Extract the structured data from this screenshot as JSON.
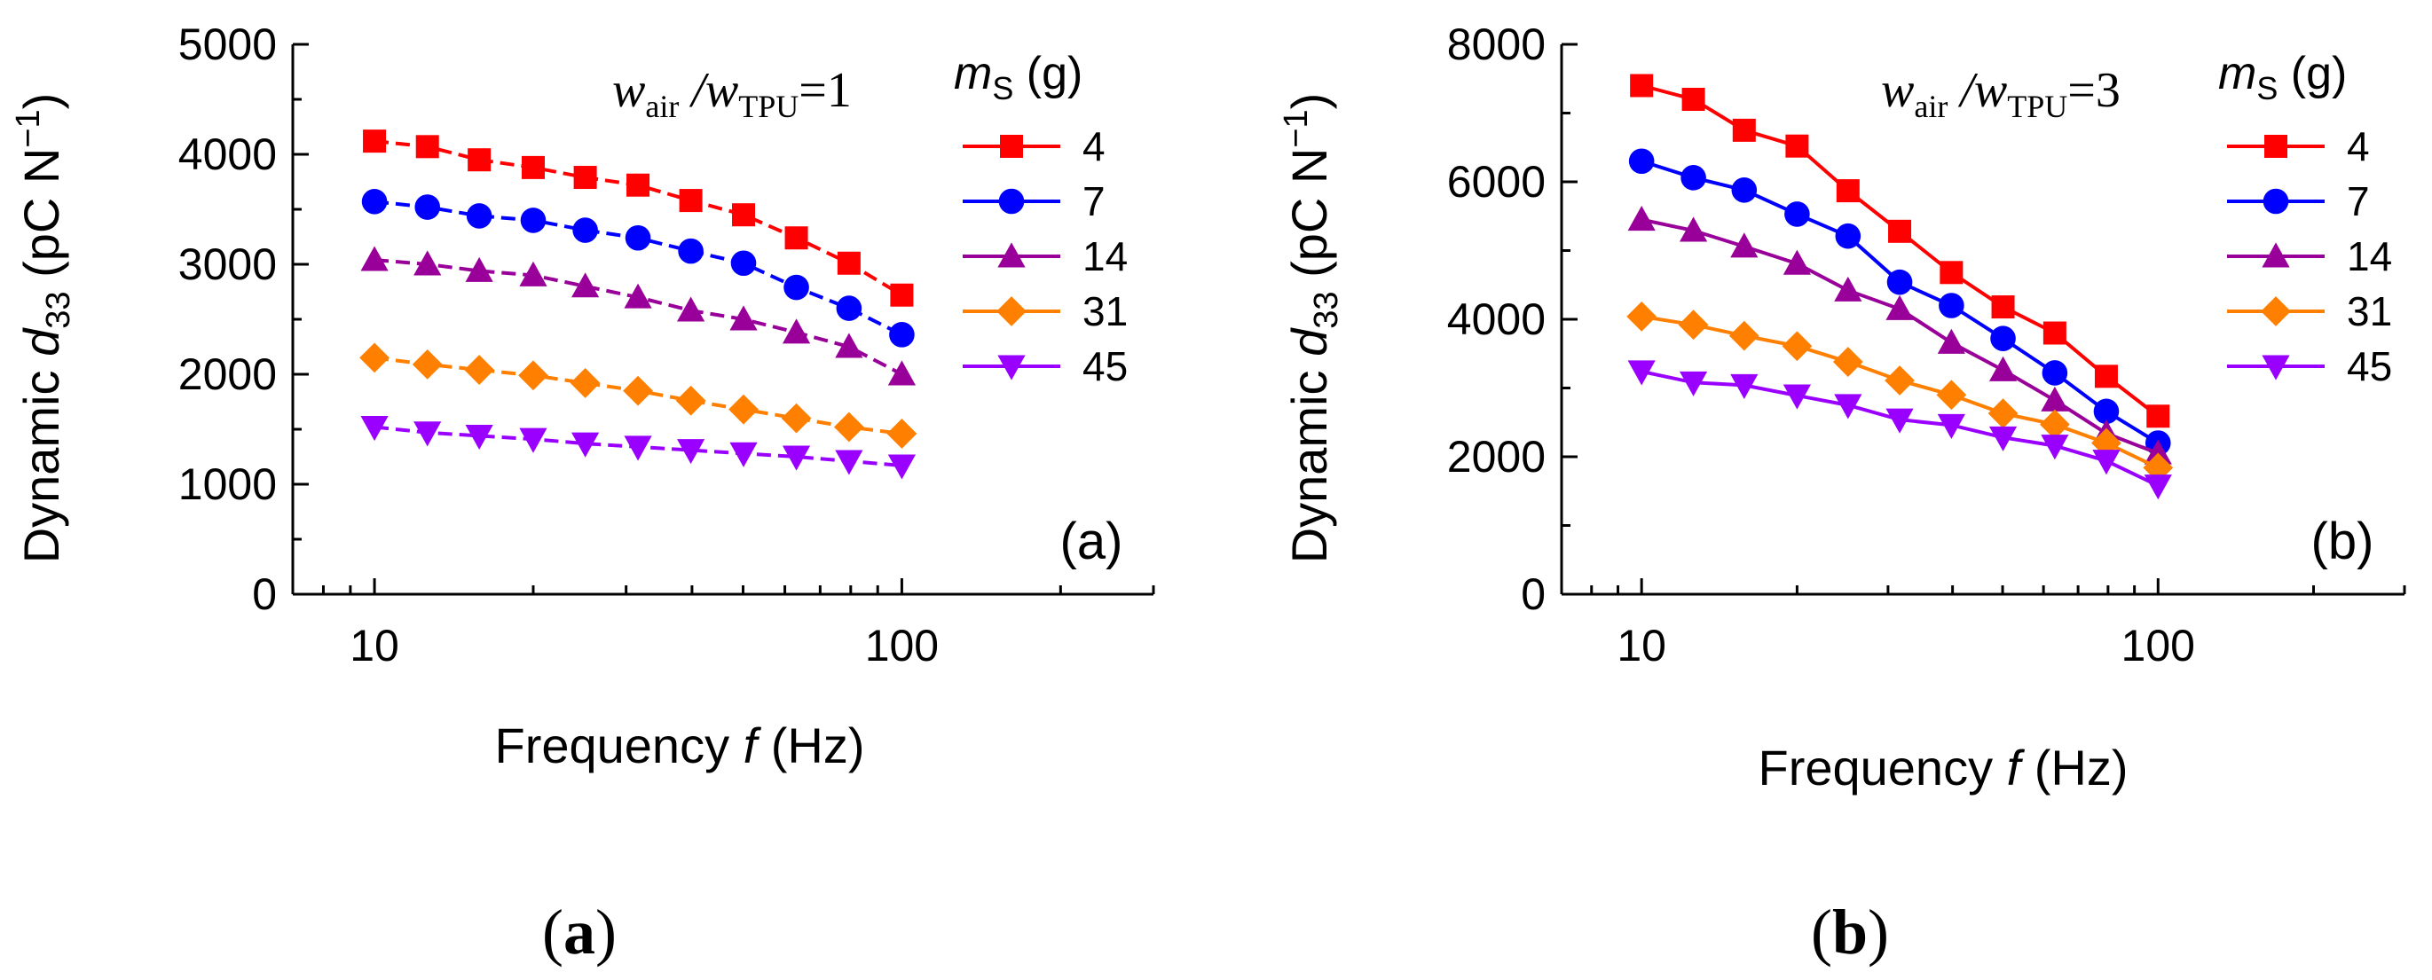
{
  "figure_captions": [
    {
      "open": "(",
      "letter": "a",
      "close": ")"
    },
    {
      "open": "(",
      "letter": "b",
      "close": ")"
    }
  ],
  "chart_data": [
    {
      "type": "line",
      "panel_label": "(a)",
      "annotation": {
        "w1": "w",
        "sub1": "air",
        "slash": " /",
        "w2": "w",
        "sub2": "TPU",
        "tail": "=1"
      },
      "xlabel": "Frequency  f  (Hz)",
      "ylabel": "Dynamic d33 (pC N⁻¹)",
      "ylabel_parts": {
        "prefix": "Dynamic ",
        "d": "d",
        "sub": "33",
        "units": " (pC N",
        "sup": "−1",
        "close": ")"
      },
      "xlabel_parts": {
        "prefix": "Frequency  ",
        "f": "f",
        "suffix": "  (Hz)"
      },
      "xscale": "log",
      "xlim": [
        7,
        300
      ],
      "ylim": [
        0,
        5000
      ],
      "xticks": [
        10,
        100
      ],
      "xtick_labels": [
        "10",
        "100"
      ],
      "yticks": [
        0,
        1000,
        2000,
        3000,
        4000,
        5000
      ],
      "ytick_labels": [
        "0",
        "1000",
        "2000",
        "3000",
        "4000",
        "5000"
      ],
      "legend_title": {
        "m": "m",
        "sub": "S",
        "unit": " (g)"
      },
      "x": [
        10,
        12.6,
        15.8,
        20,
        25.1,
        31.6,
        39.8,
        50.1,
        63.1,
        79.4,
        100
      ],
      "series": [
        {
          "name": "4",
          "color": "#ff0000",
          "marker": "square",
          "values": [
            4120,
            4070,
            3950,
            3880,
            3790,
            3720,
            3580,
            3450,
            3240,
            3010,
            2720
          ]
        },
        {
          "name": "7",
          "color": "#0000ff",
          "marker": "circle",
          "values": [
            3570,
            3520,
            3440,
            3400,
            3310,
            3240,
            3120,
            3010,
            2790,
            2600,
            2360
          ]
        },
        {
          "name": "14",
          "color": "#990099",
          "marker": "triangle-up",
          "values": [
            3040,
            3000,
            2940,
            2900,
            2800,
            2700,
            2580,
            2500,
            2380,
            2250,
            2000
          ]
        },
        {
          "name": "31",
          "color": "#ff8000",
          "marker": "diamond",
          "values": [
            2150,
            2090,
            2040,
            1990,
            1920,
            1850,
            1760,
            1680,
            1600,
            1520,
            1460
          ]
        },
        {
          "name": "45",
          "color": "#9900ff",
          "marker": "triangle-down",
          "values": [
            1520,
            1470,
            1440,
            1410,
            1370,
            1340,
            1310,
            1280,
            1250,
            1210,
            1170
          ]
        }
      ]
    },
    {
      "type": "line",
      "panel_label": "(b)",
      "annotation": {
        "w1": "w",
        "sub1": "air",
        "slash": " /",
        "w2": "w",
        "sub2": "TPU",
        "tail": "=3"
      },
      "xlabel": "Frequency  f  (Hz)",
      "ylabel": "Dynamic d33 (pC N⁻¹)",
      "ylabel_parts": {
        "prefix": "Dynamic ",
        "d": "d",
        "sub": "33",
        "units": " (pC N",
        "sup": "−1",
        "close": ")"
      },
      "xlabel_parts": {
        "prefix": "Frequency  ",
        "f": "f",
        "suffix": "  (Hz)"
      },
      "xscale": "log",
      "xlim": [
        7,
        300
      ],
      "ylim": [
        0,
        8000
      ],
      "xticks": [
        10,
        100
      ],
      "xtick_labels": [
        "10",
        "100"
      ],
      "yticks": [
        0,
        2000,
        4000,
        6000,
        8000
      ],
      "ytick_labels": [
        "0",
        "2000",
        "4000",
        "6000",
        "8000"
      ],
      "legend_title": {
        "m": "m",
        "sub": "S",
        "unit": " (g)"
      },
      "x": [
        10,
        12.6,
        15.8,
        20,
        25.1,
        31.6,
        39.8,
        50.1,
        63.1,
        79.4,
        100
      ],
      "series": [
        {
          "name": "4",
          "color": "#ff0000",
          "marker": "square",
          "values": [
            7400,
            7200,
            6750,
            6520,
            5870,
            5280,
            4680,
            4180,
            3800,
            3170,
            2590
          ]
        },
        {
          "name": "7",
          "color": "#0000ff",
          "marker": "circle",
          "values": [
            6300,
            6060,
            5880,
            5530,
            5210,
            4540,
            4200,
            3720,
            3220,
            2660,
            2200
          ]
        },
        {
          "name": "14",
          "color": "#990099",
          "marker": "triangle-up",
          "values": [
            5450,
            5290,
            5060,
            4810,
            4420,
            4150,
            3660,
            3260,
            2820,
            2340,
            2050
          ]
        },
        {
          "name": "31",
          "color": "#ff8000",
          "marker": "diamond",
          "values": [
            4040,
            3920,
            3760,
            3610,
            3380,
            3110,
            2900,
            2630,
            2470,
            2200,
            1840
          ]
        },
        {
          "name": "45",
          "color": "#9900ff",
          "marker": "triangle-down",
          "values": [
            3240,
            3080,
            3040,
            2890,
            2750,
            2540,
            2460,
            2280,
            2160,
            1940,
            1580
          ]
        }
      ]
    }
  ]
}
